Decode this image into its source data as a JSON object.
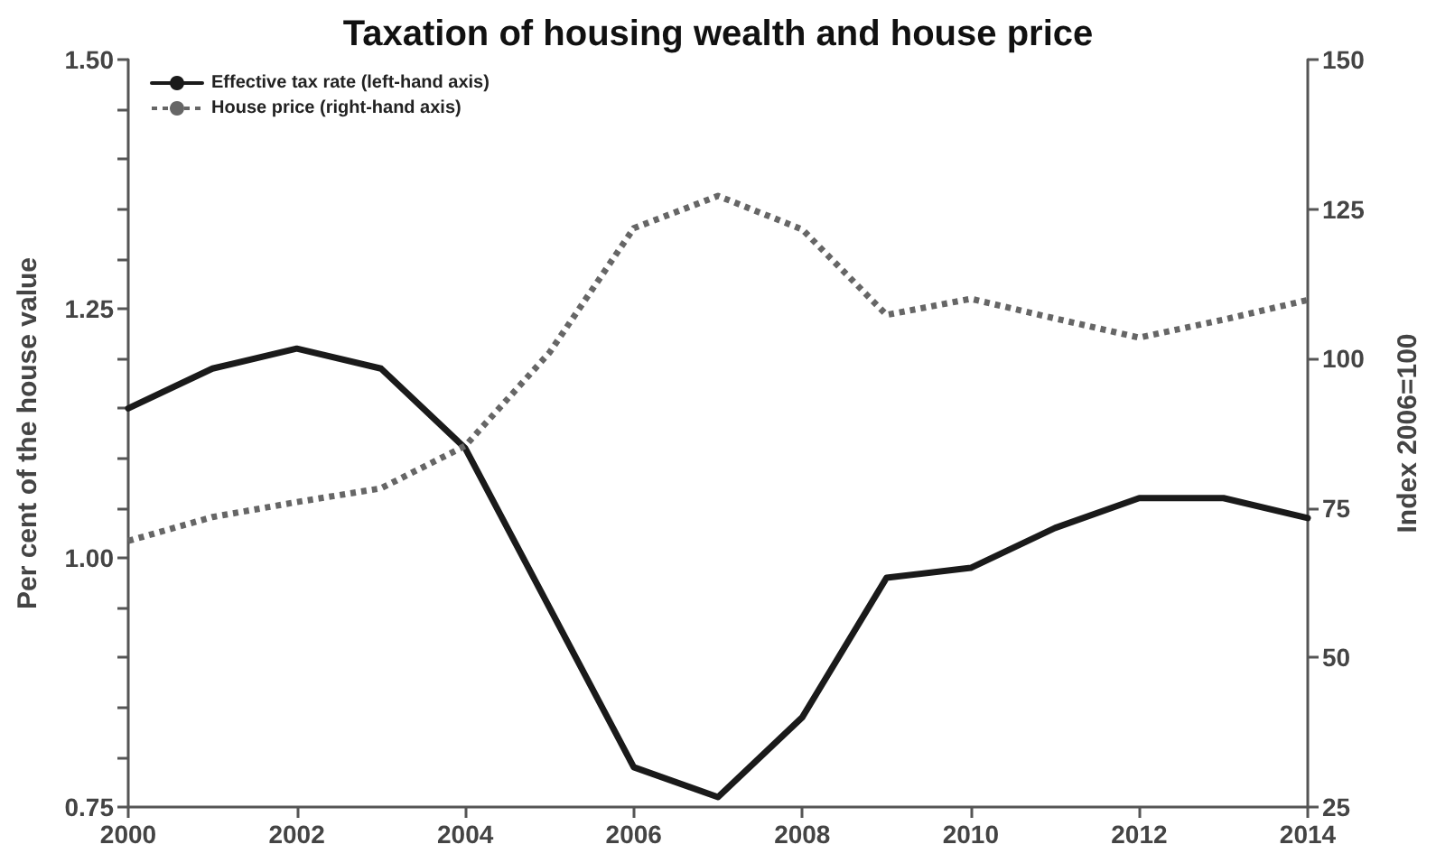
{
  "chart_data": {
    "type": "line",
    "title": "Taxation of housing wealth and house price",
    "ylabel": "Per cent of the house value",
    "y2label": "Index 2006=100",
    "x": [
      2000,
      2001,
      2002,
      2003,
      2004,
      2005,
      2006,
      2007,
      2008,
      2009,
      2010,
      2011,
      2012,
      2013,
      2014
    ],
    "series": [
      {
        "name": "Effective tax rate (left-hand axis)",
        "color": "#1a1a1a",
        "line_style": "solid",
        "values": [
          1.15,
          1.19,
          1.21,
          1.19,
          1.11,
          0.95,
          0.79,
          0.76,
          0.84,
          0.98,
          0.99,
          1.03,
          1.06,
          1.06,
          1.04
        ]
      },
      {
        "name": "House price (right-hand axis)",
        "color": "#666666",
        "line_style": "dotted",
        "axis": "y2",
        "values": [
          69.5,
          73.5,
          76,
          78.3,
          85.4,
          101,
          121.8,
          127.2,
          121.6,
          107.3,
          110,
          106.7,
          103.5,
          106.5,
          109.8
        ]
      }
    ],
    "xlim": [
      2000,
      2014
    ],
    "xticks": [
      2000,
      2002,
      2004,
      2006,
      2008,
      2010,
      2012,
      2014
    ],
    "ylim": [
      0.75,
      1.5
    ],
    "yticks": [
      {
        "value": 0.75,
        "label": "0.75"
      },
      {
        "value": 0.8,
        "label": null
      },
      {
        "value": 0.85,
        "label": null
      },
      {
        "value": 0.9,
        "label": null
      },
      {
        "value": 0.95,
        "label": null
      },
      {
        "value": 1.0,
        "label": "1.00"
      },
      {
        "value": 1.05,
        "label": null
      },
      {
        "value": 1.1,
        "label": null
      },
      {
        "value": 1.15,
        "label": null
      },
      {
        "value": 1.2,
        "label": null
      },
      {
        "value": 1.25,
        "label": "1.25"
      },
      {
        "value": 1.3,
        "label": null
      },
      {
        "value": 1.35,
        "label": null
      },
      {
        "value": 1.4,
        "label": null
      },
      {
        "value": 1.45,
        "label": null
      },
      {
        "value": 1.5,
        "label": "1.50"
      }
    ],
    "y2lim": [
      25,
      150
    ],
    "y2ticks": [
      25,
      50,
      75,
      100,
      125,
      150
    ],
    "legend": "top left",
    "marker": "none",
    "grid": false
  }
}
